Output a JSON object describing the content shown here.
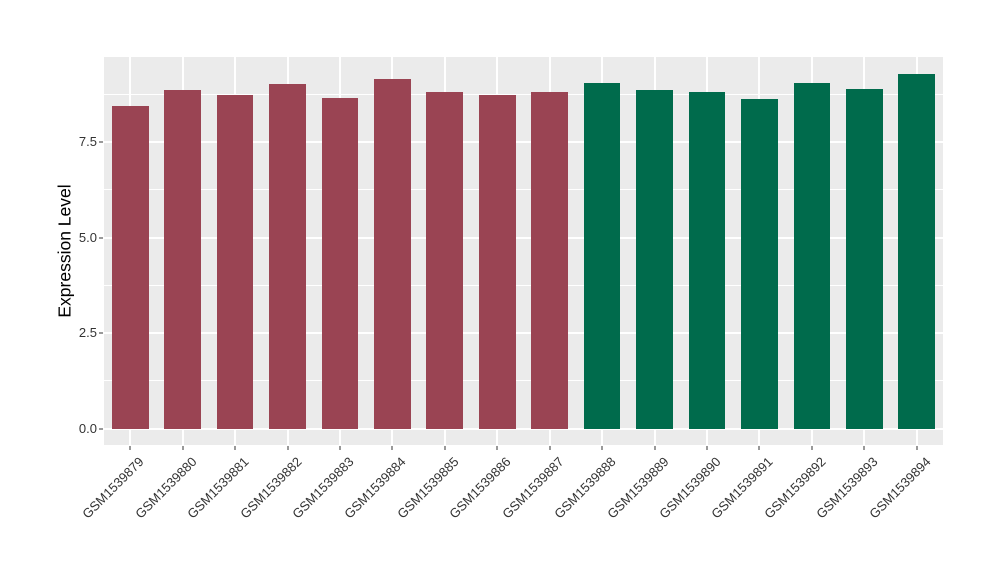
{
  "chart_data": {
    "type": "bar",
    "title": "",
    "xlabel": "",
    "ylabel": "Expression Level",
    "categories": [
      "GSM1539879",
      "GSM1539880",
      "GSM1539881",
      "GSM1539882",
      "GSM1539883",
      "GSM1539884",
      "GSM1539885",
      "GSM1539886",
      "GSM1539887",
      "GSM1539888",
      "GSM1539889",
      "GSM1539890",
      "GSM1539891",
      "GSM1539892",
      "GSM1539893",
      "GSM1539894"
    ],
    "values": [
      8.45,
      8.86,
      8.74,
      9.02,
      8.65,
      9.15,
      8.8,
      8.73,
      8.81,
      9.04,
      8.86,
      8.8,
      8.62,
      9.04,
      8.89,
      9.29
    ],
    "bar_colors": [
      "#9A4453",
      "#9A4453",
      "#9A4453",
      "#9A4453",
      "#9A4453",
      "#9A4453",
      "#9A4453",
      "#9A4453",
      "#9A4453",
      "#006B4C",
      "#006B4C",
      "#006B4C",
      "#006B4C",
      "#006B4C",
      "#006B4C",
      "#006B4C"
    ],
    "group_colors": {
      "left_group": "#9A4453",
      "right_group": "#006B4C"
    },
    "yticks": [
      0.0,
      2.5,
      5.0,
      7.5
    ],
    "ytick_labels": [
      "0.0",
      "2.5",
      "5.0",
      "7.5"
    ],
    "y_minor_ticks": [
      1.25,
      3.75,
      6.25,
      8.75
    ],
    "ylim": [
      -0.45,
      9.73
    ],
    "grid": "major and minor horizontal + major vertical, white on gray",
    "legend_position": "none",
    "panel_background": "#EBEBEB",
    "grid_color": "#FFFFFF",
    "tick_color": "#999999",
    "axis_text_color": "#333333"
  }
}
